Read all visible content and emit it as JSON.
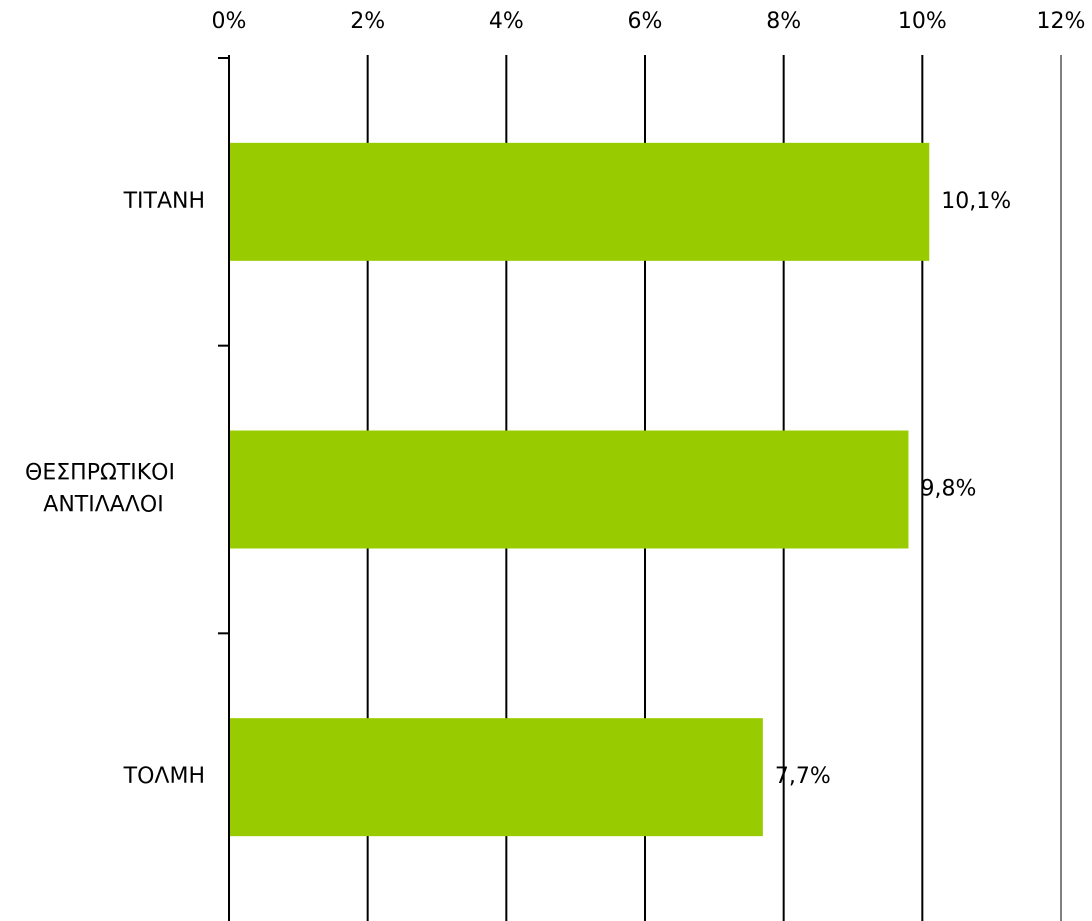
{
  "chart_data": {
    "type": "barh",
    "categories": [
      "ΤΙΤΑΝΗ",
      "ΘΕΣΠΡΩΤΙΚΟΙ ΑΝΤΙΛΑΛΟΙ",
      "ΤΟΛΜΗ"
    ],
    "values": [
      10.1,
      9.8,
      7.7
    ],
    "value_labels": [
      "10,1%",
      "9,8%",
      "7,7%"
    ],
    "color": "#99cc00",
    "xlim": [
      0,
      12
    ],
    "xticks": [
      {
        "value": 0,
        "label": "0%"
      },
      {
        "value": 2,
        "label": "2%"
      },
      {
        "value": 4,
        "label": "4%"
      },
      {
        "value": 6,
        "label": "6%"
      },
      {
        "value": 8,
        "label": "8%"
      },
      {
        "value": 10,
        "label": "10%"
      },
      {
        "value": 12,
        "label": "12%"
      }
    ],
    "grid": true
  }
}
